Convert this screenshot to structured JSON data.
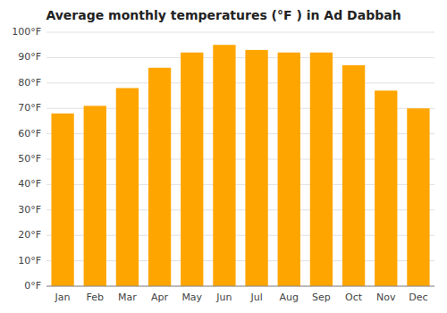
{
  "chart_data": {
    "type": "bar",
    "title": "Average monthly temperatures (°F ) in Ad Dabbah",
    "categories": [
      "Jan",
      "Feb",
      "Mar",
      "Apr",
      "May",
      "Jun",
      "Jul",
      "Aug",
      "Sep",
      "Oct",
      "Nov",
      "Dec"
    ],
    "values": [
      68,
      71,
      78,
      86,
      92,
      95,
      93,
      92,
      92,
      87,
      77,
      70
    ],
    "color": "#FFA500",
    "ylim": [
      0,
      100
    ],
    "yticks": [
      {
        "value": 0,
        "label": "0°F"
      },
      {
        "value": 10,
        "label": "10°F"
      },
      {
        "value": 20,
        "label": "20°F"
      },
      {
        "value": 30,
        "label": "30°F"
      },
      {
        "value": 40,
        "label": "40°F"
      },
      {
        "value": 50,
        "label": "50°F"
      },
      {
        "value": 60,
        "label": "60°F"
      },
      {
        "value": 70,
        "label": "70°F"
      },
      {
        "value": 80,
        "label": "80°F"
      },
      {
        "value": 90,
        "label": "90°F"
      },
      {
        "value": 100,
        "label": "100°F"
      }
    ],
    "grid": true
  }
}
